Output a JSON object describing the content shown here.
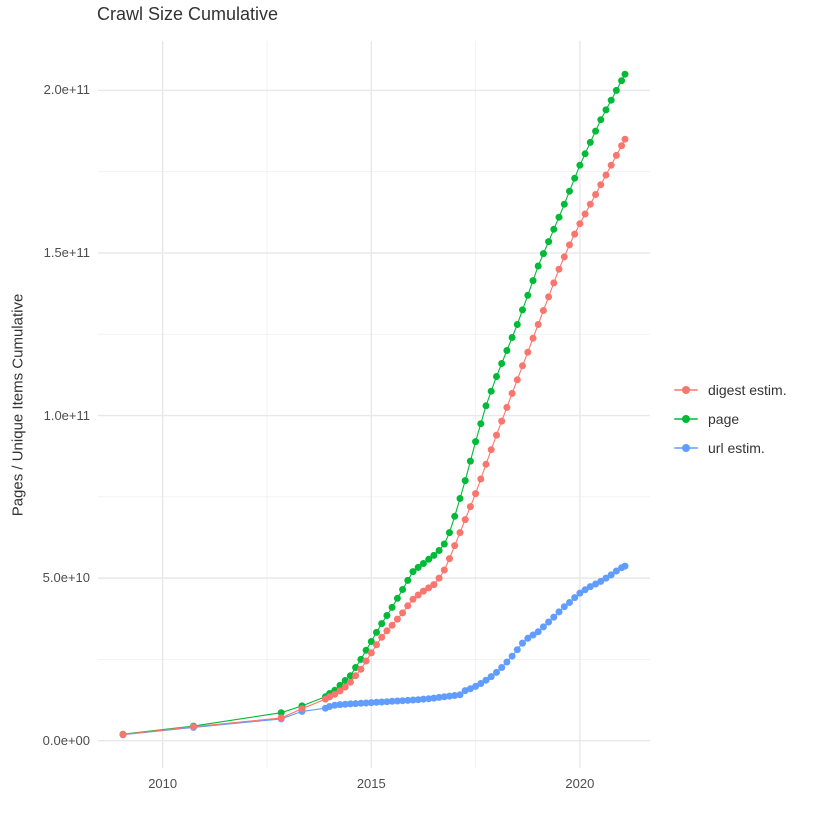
{
  "chart_data": {
    "type": "scatter",
    "title": "Crawl Size Cumulative",
    "xlabel": "",
    "ylabel": "Pages / Unique Items Cumulative",
    "x_unit": "decimal year",
    "value_unit": "pages / unique items, values are in billions (multiply by 1e9)",
    "xlim": [
      2008.45,
      2021.68
    ],
    "ylim_e9": [
      -8.4,
      215.2
    ],
    "grid": {
      "major_color": "#E8E8E8",
      "minor_color": "#EFEFEF",
      "shown": true
    },
    "legend_position": "right",
    "x_ticks": [
      {
        "v": 2010,
        "label": "2010"
      },
      {
        "v": 2015,
        "label": "2015"
      },
      {
        "v": 2020,
        "label": "2020"
      }
    ],
    "x_minor": [
      2012.5,
      2017.5
    ],
    "y_ticks": [
      {
        "v": 0,
        "label": "0.0e+00"
      },
      {
        "v": 50,
        "label": "5.0e+10"
      },
      {
        "v": 100,
        "label": "1.0e+11"
      },
      {
        "v": 150,
        "label": "1.5e+11"
      },
      {
        "v": 200,
        "label": "2.0e+11"
      }
    ],
    "y_minor": [
      25,
      75,
      125,
      175
    ],
    "series": [
      {
        "name": "digest estim.",
        "color": "#F8766D",
        "points": [
          [
            2009.05,
            1.9
          ],
          [
            2010.74,
            4.3
          ],
          [
            2012.84,
            7.0
          ],
          [
            2013.34,
            9.8
          ],
          [
            2013.9,
            12.8
          ],
          [
            2014.0,
            13.5
          ],
          [
            2014.125,
            14.3
          ],
          [
            2014.25,
            15.3
          ],
          [
            2014.375,
            16.5
          ],
          [
            2014.5,
            18.0
          ],
          [
            2014.625,
            20.0
          ],
          [
            2014.75,
            22.0
          ],
          [
            2014.875,
            24.5
          ],
          [
            2015.0,
            27.0
          ],
          [
            2015.125,
            29.5
          ],
          [
            2015.25,
            31.8
          ],
          [
            2015.375,
            33.8
          ],
          [
            2015.5,
            35.5
          ],
          [
            2015.625,
            37.4
          ],
          [
            2015.75,
            39.3
          ],
          [
            2015.875,
            41.5
          ],
          [
            2016.0,
            43.5
          ],
          [
            2016.125,
            44.8
          ],
          [
            2016.25,
            46.0
          ],
          [
            2016.375,
            47.0
          ],
          [
            2016.5,
            48.0
          ],
          [
            2016.625,
            50.0
          ],
          [
            2016.75,
            52.5
          ],
          [
            2016.875,
            56.0
          ],
          [
            2017.0,
            60.0
          ],
          [
            2017.125,
            64.0
          ],
          [
            2017.25,
            68.0
          ],
          [
            2017.375,
            72.0
          ],
          [
            2017.5,
            76.0
          ],
          [
            2017.625,
            80.5
          ],
          [
            2017.75,
            85.0
          ],
          [
            2017.875,
            89.5
          ],
          [
            2018.0,
            94.0
          ],
          [
            2018.125,
            98.3
          ],
          [
            2018.25,
            102.5
          ],
          [
            2018.375,
            106.8
          ],
          [
            2018.5,
            111.0
          ],
          [
            2018.625,
            115.3
          ],
          [
            2018.75,
            119.5
          ],
          [
            2018.875,
            123.8
          ],
          [
            2019.0,
            128.0
          ],
          [
            2019.125,
            132.3
          ],
          [
            2019.25,
            136.5
          ],
          [
            2019.375,
            140.8
          ],
          [
            2019.5,
            145.0
          ],
          [
            2019.625,
            148.8
          ],
          [
            2019.75,
            152.5
          ],
          [
            2019.875,
            155.8
          ],
          [
            2020.0,
            159.0
          ],
          [
            2020.125,
            162.0
          ],
          [
            2020.25,
            165.0
          ],
          [
            2020.375,
            168.0
          ],
          [
            2020.5,
            171.0
          ],
          [
            2020.625,
            174.0
          ],
          [
            2020.75,
            177.0
          ],
          [
            2020.875,
            180.0
          ],
          [
            2021.0,
            183.0
          ],
          [
            2021.08,
            185.0
          ]
        ]
      },
      {
        "name": "page",
        "color": "#00BA38",
        "points": [
          [
            2009.05,
            2.0
          ],
          [
            2010.74,
            4.5
          ],
          [
            2012.84,
            8.6
          ],
          [
            2013.34,
            10.7
          ],
          [
            2013.9,
            13.5
          ],
          [
            2014.0,
            14.5
          ],
          [
            2014.125,
            15.5
          ],
          [
            2014.25,
            17.0
          ],
          [
            2014.375,
            18.5
          ],
          [
            2014.5,
            20.0
          ],
          [
            2014.625,
            22.5
          ],
          [
            2014.75,
            25.0
          ],
          [
            2014.875,
            27.8
          ],
          [
            2015.0,
            30.5
          ],
          [
            2015.125,
            33.3
          ],
          [
            2015.25,
            36.0
          ],
          [
            2015.375,
            38.5
          ],
          [
            2015.5,
            41.0
          ],
          [
            2015.625,
            43.8
          ],
          [
            2015.75,
            46.5
          ],
          [
            2015.875,
            49.3
          ],
          [
            2016.0,
            52.0
          ],
          [
            2016.125,
            53.3
          ],
          [
            2016.25,
            54.5
          ],
          [
            2016.375,
            55.8
          ],
          [
            2016.5,
            57.0
          ],
          [
            2016.625,
            58.5
          ],
          [
            2016.75,
            60.5
          ],
          [
            2016.875,
            64.0
          ],
          [
            2017.0,
            69.0
          ],
          [
            2017.125,
            74.5
          ],
          [
            2017.25,
            80.0
          ],
          [
            2017.375,
            86.0
          ],
          [
            2017.5,
            92.0
          ],
          [
            2017.625,
            97.5
          ],
          [
            2017.75,
            103.0
          ],
          [
            2017.875,
            107.5
          ],
          [
            2018.0,
            112.0
          ],
          [
            2018.125,
            116.0
          ],
          [
            2018.25,
            120.0
          ],
          [
            2018.375,
            124.0
          ],
          [
            2018.5,
            128.0
          ],
          [
            2018.625,
            132.5
          ],
          [
            2018.75,
            137.0
          ],
          [
            2018.875,
            141.5
          ],
          [
            2019.0,
            146.0
          ],
          [
            2019.125,
            149.8
          ],
          [
            2019.25,
            153.5
          ],
          [
            2019.375,
            157.3
          ],
          [
            2019.5,
            161.0
          ],
          [
            2019.625,
            165.0
          ],
          [
            2019.75,
            169.0
          ],
          [
            2019.875,
            173.0
          ],
          [
            2020.0,
            177.0
          ],
          [
            2020.125,
            180.5
          ],
          [
            2020.25,
            184.0
          ],
          [
            2020.375,
            187.5
          ],
          [
            2020.5,
            191.0
          ],
          [
            2020.625,
            194.0
          ],
          [
            2020.75,
            197.0
          ],
          [
            2020.875,
            200.0
          ],
          [
            2021.0,
            203.0
          ],
          [
            2021.08,
            205.0
          ]
        ]
      },
      {
        "name": "url estim.",
        "color": "#619CFF",
        "points": [
          [
            2009.05,
            1.8
          ],
          [
            2010.74,
            4.1
          ],
          [
            2012.84,
            6.7
          ],
          [
            2013.34,
            9.0
          ],
          [
            2013.9,
            10.0
          ],
          [
            2014.0,
            10.5
          ],
          [
            2014.125,
            10.9
          ],
          [
            2014.25,
            11.1
          ],
          [
            2014.375,
            11.2
          ],
          [
            2014.5,
            11.3
          ],
          [
            2014.625,
            11.4
          ],
          [
            2014.75,
            11.5
          ],
          [
            2014.875,
            11.6
          ],
          [
            2015.0,
            11.7
          ],
          [
            2015.125,
            11.8
          ],
          [
            2015.25,
            11.9
          ],
          [
            2015.375,
            12.0
          ],
          [
            2015.5,
            12.1
          ],
          [
            2015.625,
            12.2
          ],
          [
            2015.75,
            12.3
          ],
          [
            2015.875,
            12.4
          ],
          [
            2016.0,
            12.5
          ],
          [
            2016.125,
            12.6
          ],
          [
            2016.25,
            12.8
          ],
          [
            2016.375,
            12.9
          ],
          [
            2016.5,
            13.1
          ],
          [
            2016.625,
            13.3
          ],
          [
            2016.75,
            13.5
          ],
          [
            2016.875,
            13.7
          ],
          [
            2017.0,
            13.9
          ],
          [
            2017.125,
            14.1
          ],
          [
            2017.25,
            15.4
          ],
          [
            2017.375,
            16.0
          ],
          [
            2017.5,
            16.7
          ],
          [
            2017.625,
            17.6
          ],
          [
            2017.75,
            18.6
          ],
          [
            2017.875,
            19.7
          ],
          [
            2018.0,
            21.0
          ],
          [
            2018.125,
            22.5
          ],
          [
            2018.25,
            24.2
          ],
          [
            2018.375,
            26.0
          ],
          [
            2018.5,
            28.0
          ],
          [
            2018.625,
            30.0
          ],
          [
            2018.75,
            31.5
          ],
          [
            2018.875,
            32.5
          ],
          [
            2019.0,
            33.5
          ],
          [
            2019.125,
            35.0
          ],
          [
            2019.25,
            36.5
          ],
          [
            2019.375,
            38.0
          ],
          [
            2019.5,
            39.6
          ],
          [
            2019.625,
            41.2
          ],
          [
            2019.75,
            42.5
          ],
          [
            2019.875,
            44.0
          ],
          [
            2020.0,
            45.4
          ],
          [
            2020.125,
            46.4
          ],
          [
            2020.25,
            47.4
          ],
          [
            2020.375,
            48.2
          ],
          [
            2020.5,
            49.0
          ],
          [
            2020.625,
            50.0
          ],
          [
            2020.75,
            51.0
          ],
          [
            2020.875,
            52.2
          ],
          [
            2021.0,
            53.2
          ],
          [
            2021.08,
            53.7
          ]
        ]
      }
    ]
  },
  "legend": {
    "items": [
      {
        "label": "digest estim."
      },
      {
        "label": "page"
      },
      {
        "label": "url estim."
      }
    ]
  }
}
